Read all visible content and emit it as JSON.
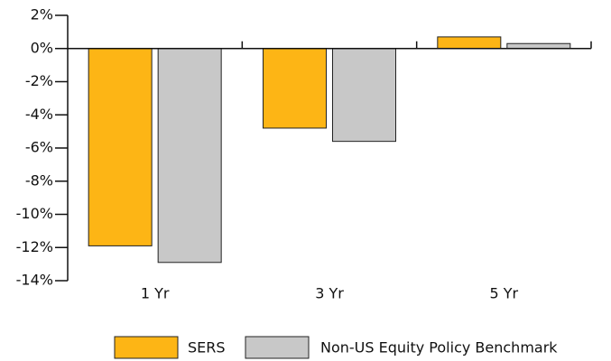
{
  "chart_data": {
    "type": "bar",
    "categories": [
      "1 Yr",
      "3 Yr",
      "5 Yr"
    ],
    "series": [
      {
        "name": "SERS",
        "color": "#fdb515",
        "values": [
          -11.9,
          -4.8,
          0.7
        ]
      },
      {
        "name": "Non-US Equity Policy Benchmark",
        "color": "#c8c8c8",
        "values": [
          -12.9,
          -5.6,
          0.3
        ]
      }
    ],
    "ylim": [
      -14,
      2
    ],
    "yticks": [
      {
        "value": 2,
        "label": "2%"
      },
      {
        "value": 0,
        "label": "0%"
      },
      {
        "value": -2,
        "label": "-2%"
      },
      {
        "value": -4,
        "label": "-4%"
      },
      {
        "value": -6,
        "label": "-6%"
      },
      {
        "value": -8,
        "label": "-8%"
      },
      {
        "value": -10,
        "label": "-10%"
      },
      {
        "value": -12,
        "label": "-12%"
      },
      {
        "value": -14,
        "label": "-14%"
      }
    ],
    "legend": "bottom"
  }
}
